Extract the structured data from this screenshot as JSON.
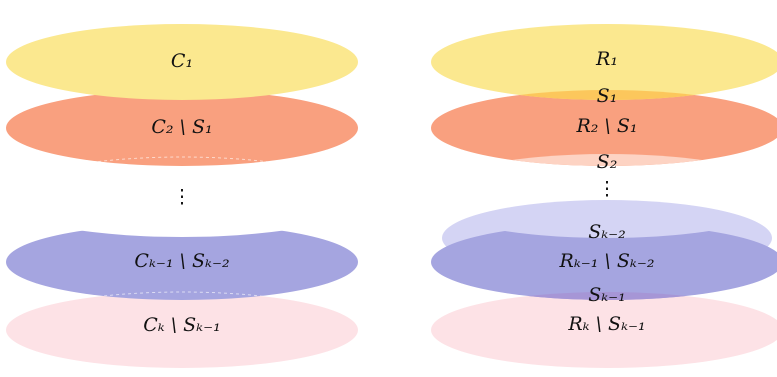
{
  "left": {
    "labels": [
      "C₁",
      "C₂ \\ S₁",
      "⋮",
      "Cₖ₋₁ \\ Sₖ₋₂",
      "Cₖ \\ Sₖ₋₁"
    ]
  },
  "right": {
    "labels": [
      "R₁",
      "S₁",
      "R₂ \\ S₁",
      "S₂",
      "⋮",
      "Sₖ₋₂",
      "Rₖ₋₁ \\ Sₖ₋₂",
      "Sₖ₋₁",
      "Rₖ \\ Sₖ₋₁"
    ]
  }
}
